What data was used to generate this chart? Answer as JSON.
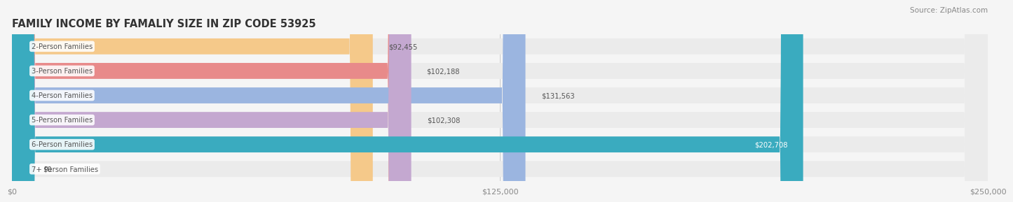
{
  "title": "FAMILY INCOME BY FAMALIY SIZE IN ZIP CODE 53925",
  "source": "Source: ZipAtlas.com",
  "categories": [
    "2-Person Families",
    "3-Person Families",
    "4-Person Families",
    "5-Person Families",
    "6-Person Families",
    "7+ Person Families"
  ],
  "values": [
    92455,
    102188,
    131563,
    102308,
    202708,
    0
  ],
  "bar_colors": [
    "#F5C98A",
    "#E88A8A",
    "#9BB5E0",
    "#C4A8D0",
    "#3AABBF",
    "#B0B8E8"
  ],
  "bar_bg_color": "#EBEBEB",
  "label_text_color": "#555555",
  "value_label_colors": [
    "#555555",
    "#555555",
    "#555555",
    "#555555",
    "#FFFFFF",
    "#555555"
  ],
  "xlim": [
    0,
    250000
  ],
  "xticks": [
    0,
    125000,
    250000
  ],
  "xtick_labels": [
    "$0",
    "$125,000",
    "$250,000"
  ],
  "background_color": "#F5F5F5",
  "title_fontsize": 10.5,
  "bar_height": 0.65,
  "figsize": [
    14.06,
    3.05
  ]
}
